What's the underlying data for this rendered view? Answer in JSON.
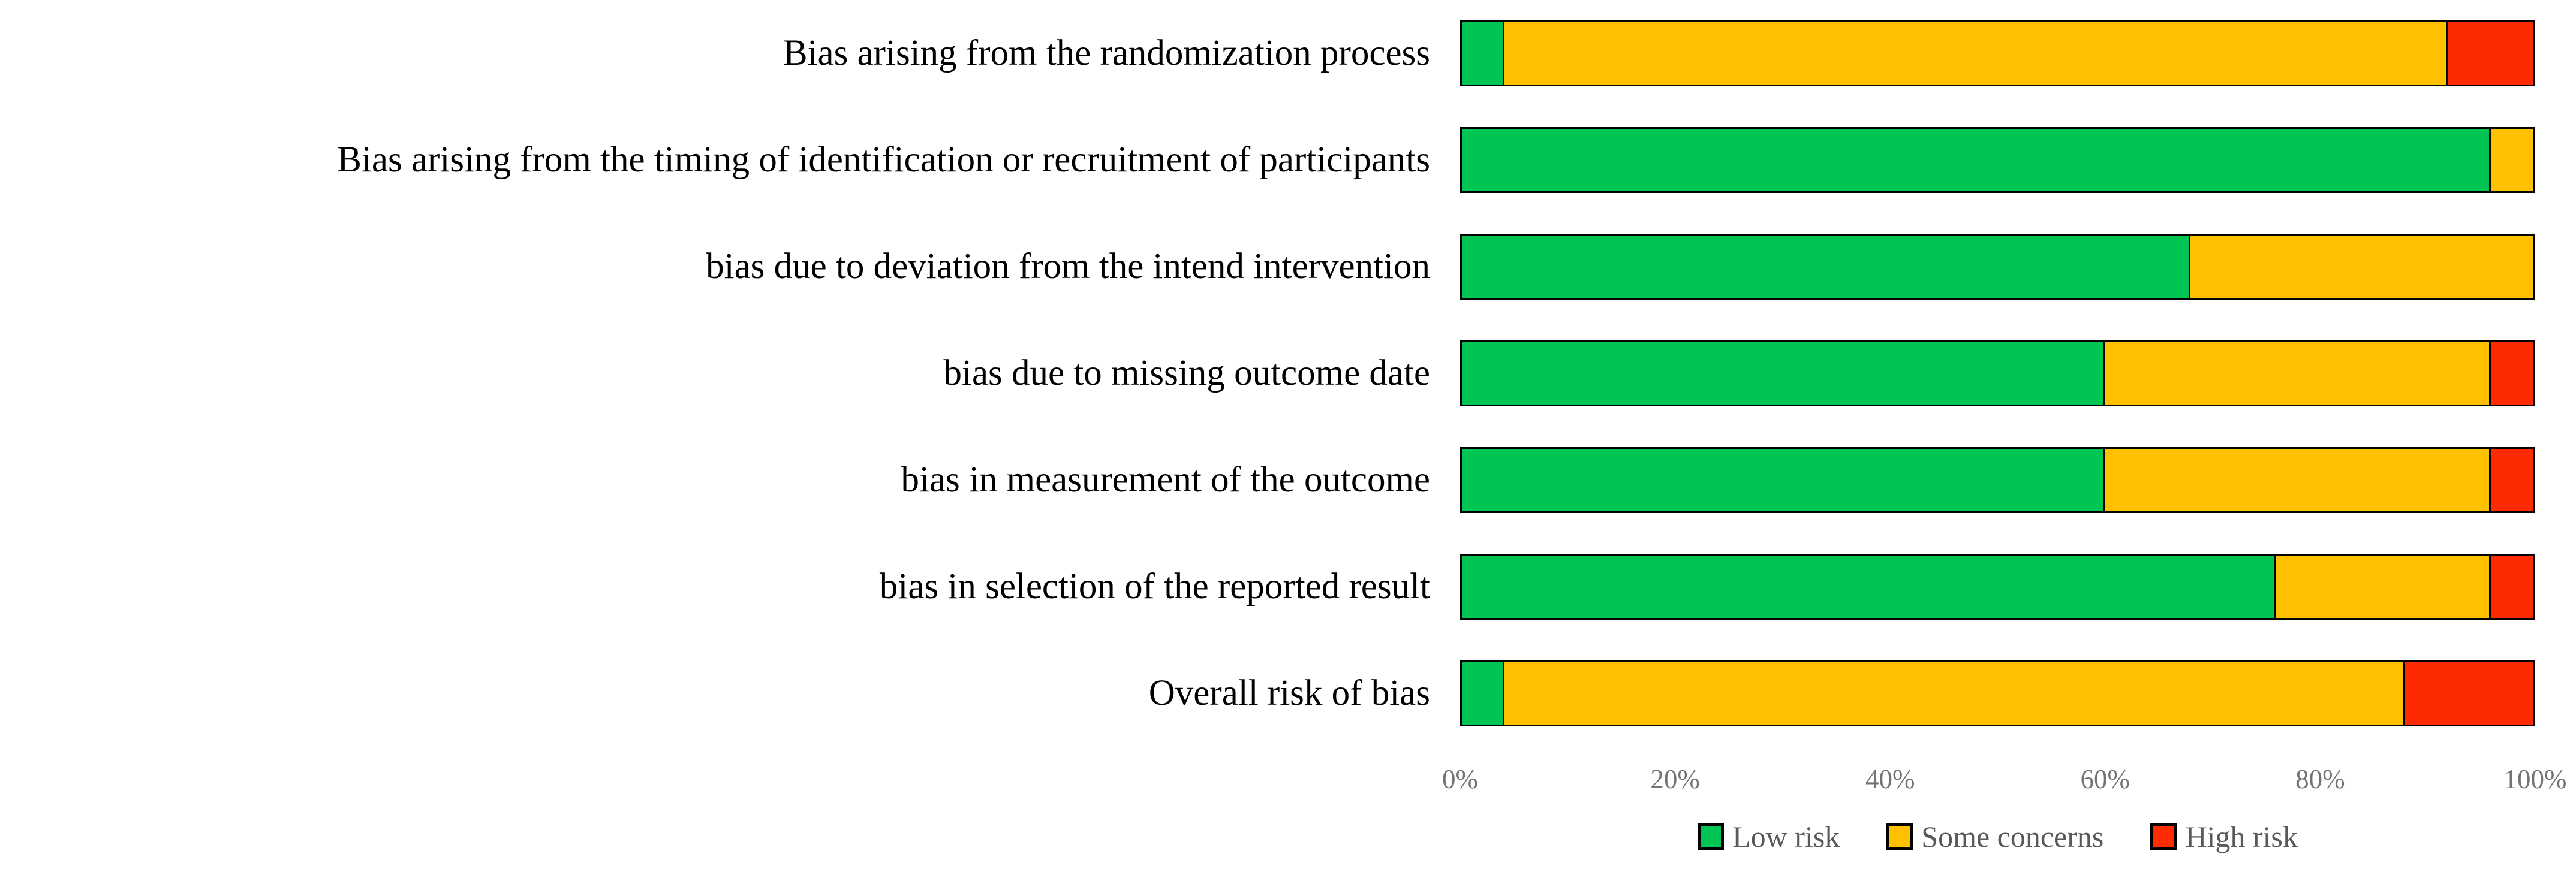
{
  "figure": {
    "description": "Risk of bias assessment summary as weighted horizontal stacked bar plot",
    "background_color": "#FFFFFF"
  },
  "chart_data": {
    "type": "bar",
    "stacked": true,
    "orientation": "horizontal",
    "title": "",
    "xlabel": "",
    "ylabel": "",
    "xlim": [
      0,
      100
    ],
    "x_tick_labels": [
      "0%",
      "20%",
      "40%",
      "60%",
      "80%",
      "100%"
    ],
    "x_tick_values": [
      0,
      20,
      40,
      60,
      80,
      100
    ],
    "grid": false,
    "legend_position": "bottom",
    "categories": [
      "Bias arising from the randomization process",
      "Bias arising from the timing of identification or recruitment of participants",
      "bias due to deviation from the intend intervention",
      "bias due to missing outcome date",
      "bias in measurement of the outcome",
      "bias in selection of the reported result",
      "Overall risk of bias"
    ],
    "series": [
      {
        "name": "Low risk",
        "color": "#00C553",
        "values": [
          4,
          96,
          68,
          60,
          60,
          76,
          4
        ]
      },
      {
        "name": "Some concerns",
        "color": "#FFC000",
        "values": [
          88,
          4,
          32,
          36,
          36,
          20,
          84
        ]
      },
      {
        "name": "High risk",
        "color": "#FF2B00",
        "values": [
          8,
          0,
          0,
          4,
          4,
          4,
          12
        ]
      }
    ],
    "colors": {
      "bar_border": "#000000",
      "category_text": "#000000",
      "axis_tick_text": "#737373",
      "legend_text": "#595959"
    }
  }
}
